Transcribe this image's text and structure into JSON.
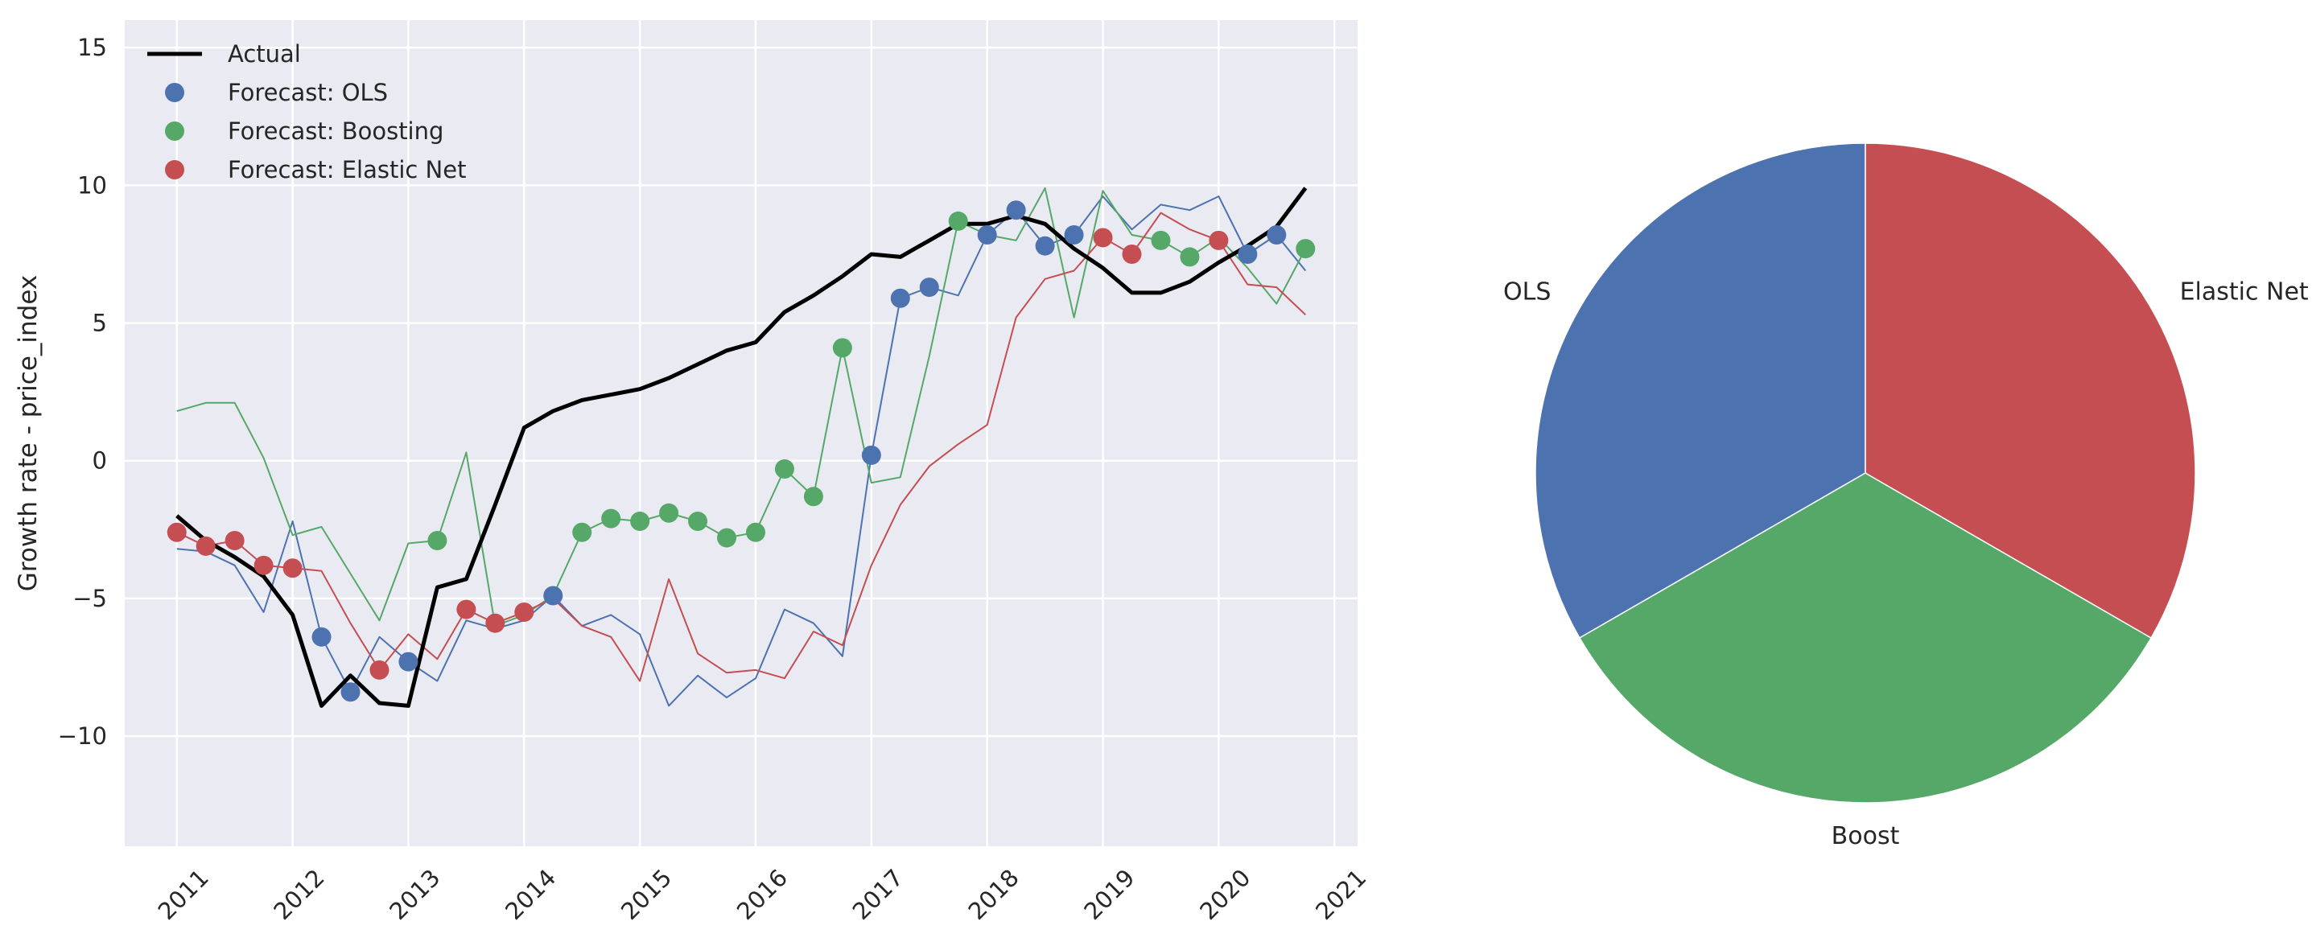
{
  "chart_data": [
    {
      "type": "line",
      "ylabel": "Growth rate - price_index",
      "xlabel": "",
      "xlim": [
        2010.55,
        2021.2
      ],
      "ylim": [
        -14,
        16
      ],
      "yticks": [
        -10,
        -5,
        0,
        5,
        10,
        15
      ],
      "xticks": [
        2011,
        2012,
        2013,
        2014,
        2015,
        2016,
        2017,
        2018,
        2019,
        2020,
        2021
      ],
      "grid": true,
      "legend_position": "top-left",
      "x": [
        2011.0,
        2011.25,
        2011.5,
        2011.75,
        2012.0,
        2012.25,
        2012.5,
        2012.75,
        2013.0,
        2013.25,
        2013.5,
        2013.75,
        2014.0,
        2014.25,
        2014.5,
        2014.75,
        2015.0,
        2015.25,
        2015.5,
        2015.75,
        2016.0,
        2016.25,
        2016.5,
        2016.75,
        2017.0,
        2017.25,
        2017.5,
        2017.75,
        2018.0,
        2018.25,
        2018.5,
        2018.75,
        2019.0,
        2019.25,
        2019.5,
        2019.75,
        2020.0,
        2020.25,
        2020.5,
        2020.75
      ],
      "actual": {
        "name": "Actual",
        "color": "#000000",
        "values": [
          -2.0,
          -2.9,
          -3.5,
          -4.2,
          -5.6,
          -8.9,
          -7.8,
          -8.8,
          -8.9,
          -4.6,
          -4.3,
          -1.6,
          1.2,
          1.8,
          2.2,
          2.4,
          2.6,
          3.0,
          3.5,
          4.0,
          4.3,
          5.4,
          6.0,
          6.7,
          7.5,
          7.4,
          8.0,
          8.6,
          8.6,
          8.9,
          8.6,
          7.7,
          7.0,
          6.1,
          6.1,
          6.5,
          7.2,
          7.8,
          8.5,
          9.9
        ]
      },
      "series": [
        {
          "name": "Forecast: OLS",
          "color": "#4c72b0",
          "values": [
            -3.2,
            -3.3,
            -3.8,
            -5.5,
            -2.2,
            -6.4,
            -8.4,
            -6.4,
            -7.3,
            -8.0,
            -5.8,
            -6.1,
            -5.8,
            -4.9,
            -6.0,
            -5.6,
            -6.3,
            -8.9,
            -7.8,
            -8.6,
            -7.9,
            -5.4,
            -5.9,
            -7.1,
            0.2,
            5.9,
            6.3,
            6.0,
            8.2,
            9.1,
            7.8,
            8.2,
            9.6,
            8.4,
            9.3,
            9.1,
            9.6,
            7.5,
            8.2,
            6.9
          ],
          "markers": [
            [
              2012.25,
              -6.4
            ],
            [
              2012.5,
              -8.4
            ],
            [
              2013.0,
              -7.3
            ],
            [
              2014.25,
              -4.9
            ],
            [
              2017.0,
              0.2
            ],
            [
              2017.25,
              5.9
            ],
            [
              2017.5,
              6.3
            ],
            [
              2018.0,
              8.2
            ],
            [
              2018.25,
              9.1
            ],
            [
              2018.5,
              7.8
            ],
            [
              2018.75,
              8.2
            ],
            [
              2020.25,
              7.5
            ],
            [
              2020.5,
              8.2
            ]
          ]
        },
        {
          "name": "Forecast: Boosting",
          "color": "#55a868",
          "values": [
            1.8,
            2.1,
            2.1,
            0.1,
            -2.7,
            -2.4,
            -4.1,
            -5.8,
            -3.0,
            -2.9,
            0.3,
            -6.0,
            -5.6,
            -4.9,
            -2.6,
            -2.1,
            -2.2,
            -1.9,
            -2.2,
            -2.8,
            -2.6,
            -0.3,
            -1.3,
            4.1,
            -0.8,
            -0.6,
            3.8,
            8.7,
            8.2,
            8.0,
            9.9,
            5.2,
            9.8,
            8.2,
            8.0,
            7.4,
            8.1,
            7.0,
            5.7,
            7.7
          ],
          "markers": [
            [
              2013.25,
              -2.9
            ],
            [
              2014.5,
              -2.6
            ],
            [
              2014.75,
              -2.1
            ],
            [
              2015.0,
              -2.2
            ],
            [
              2015.25,
              -1.9
            ],
            [
              2015.5,
              -2.2
            ],
            [
              2015.75,
              -2.8
            ],
            [
              2016.0,
              -2.6
            ],
            [
              2016.25,
              -0.3
            ],
            [
              2016.5,
              -1.3
            ],
            [
              2016.75,
              4.1
            ],
            [
              2017.75,
              8.7
            ],
            [
              2019.5,
              8.0
            ],
            [
              2019.75,
              7.4
            ],
            [
              2020.75,
              7.7
            ]
          ]
        },
        {
          "name": "Forecast: Elastic Net",
          "color": "#c44e52",
          "values": [
            -2.6,
            -3.1,
            -2.9,
            -3.8,
            -3.9,
            -4.0,
            -5.9,
            -7.6,
            -6.3,
            -7.2,
            -5.4,
            -5.9,
            -5.5,
            -5.0,
            -6.0,
            -6.4,
            -8.0,
            -4.3,
            -7.0,
            -7.7,
            -7.6,
            -7.9,
            -6.2,
            -6.7,
            -3.8,
            -1.6,
            -0.2,
            0.6,
            1.3,
            5.2,
            6.6,
            6.9,
            8.1,
            7.5,
            9.0,
            8.4,
            8.0,
            6.4,
            6.3,
            5.3
          ],
          "markers": [
            [
              2011.0,
              -2.6
            ],
            [
              2011.25,
              -3.1
            ],
            [
              2011.5,
              -2.9
            ],
            [
              2011.75,
              -3.8
            ],
            [
              2012.0,
              -3.9
            ],
            [
              2012.75,
              -7.6
            ],
            [
              2013.5,
              -5.4
            ],
            [
              2013.75,
              -5.9
            ],
            [
              2014.0,
              -5.5
            ],
            [
              2019.0,
              8.1
            ],
            [
              2019.25,
              7.5
            ],
            [
              2020.0,
              8.0
            ]
          ]
        }
      ]
    },
    {
      "type": "pie",
      "start_angle_deg": 90,
      "slices": [
        {
          "label": "OLS",
          "value": 1,
          "color": "#4c72b0"
        },
        {
          "label": "Boost",
          "value": 1,
          "color": "#55a868"
        },
        {
          "label": "Elastic Net",
          "value": 1,
          "color": "#c44e52"
        }
      ]
    }
  ]
}
